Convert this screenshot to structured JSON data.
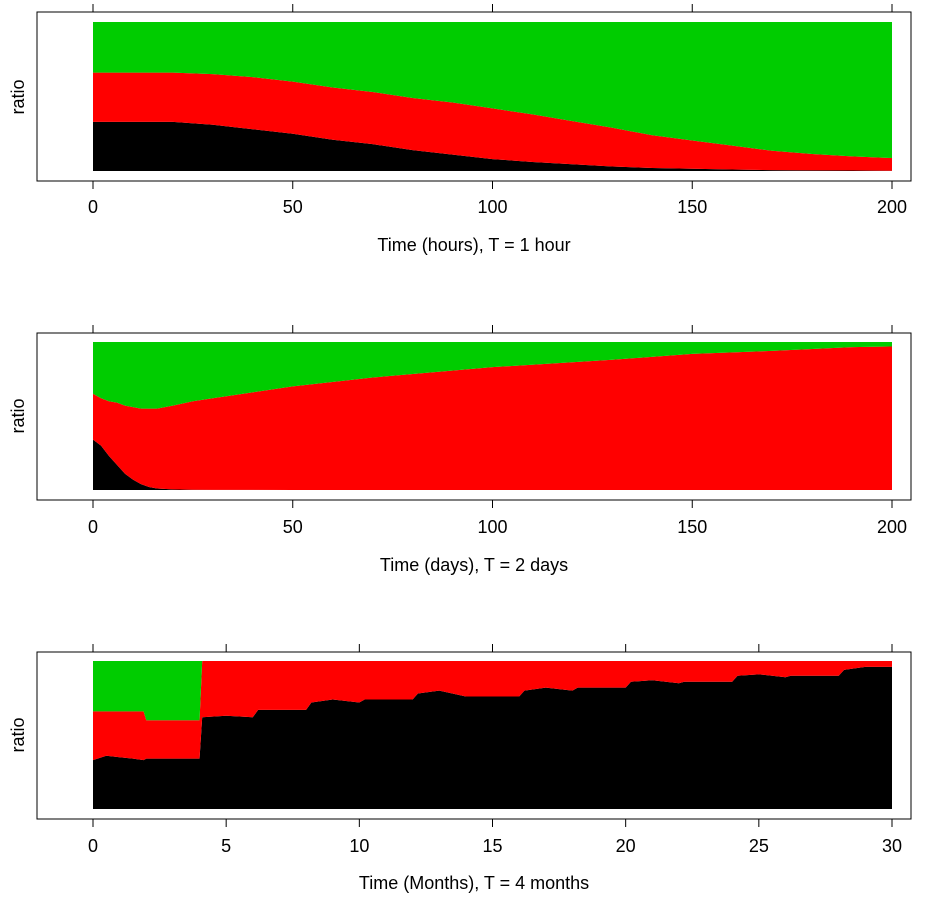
{
  "colors": {
    "top": "#00cc00",
    "middle": "#ff0000",
    "bottom": "#000000"
  },
  "chart_data": [
    {
      "type": "area",
      "stacked": true,
      "normalized": true,
      "xlabel": "Time (hours), T = 1 hour",
      "ylabel": "ratio",
      "xlim": [
        0,
        200
      ],
      "ylim": [
        0,
        1
      ],
      "xticks": [
        0,
        50,
        100,
        150,
        200
      ],
      "grid": false,
      "series": [
        {
          "color": "#000000",
          "x": [
            0,
            10,
            20,
            30,
            40,
            50,
            60,
            70,
            80,
            90,
            100,
            110,
            120,
            130,
            140,
            150,
            160,
            170,
            180,
            190,
            200
          ],
          "y": [
            0.33,
            0.33,
            0.33,
            0.31,
            0.28,
            0.25,
            0.21,
            0.18,
            0.14,
            0.11,
            0.08,
            0.06,
            0.045,
            0.03,
            0.02,
            0.015,
            0.01,
            0.006,
            0.004,
            0.003,
            0.002
          ]
        },
        {
          "color": "#ff0000",
          "x": [
            0,
            10,
            20,
            30,
            40,
            50,
            60,
            70,
            80,
            90,
            100,
            110,
            120,
            130,
            140,
            150,
            160,
            170,
            180,
            190,
            200
          ],
          "y": [
            0.33,
            0.33,
            0.33,
            0.34,
            0.35,
            0.35,
            0.35,
            0.35,
            0.35,
            0.35,
            0.34,
            0.32,
            0.29,
            0.26,
            0.22,
            0.19,
            0.16,
            0.13,
            0.11,
            0.095,
            0.085
          ]
        },
        {
          "color": "#00cc00",
          "x": [
            0,
            10,
            20,
            30,
            40,
            50,
            60,
            70,
            80,
            90,
            100,
            110,
            120,
            130,
            140,
            150,
            160,
            170,
            180,
            190,
            200
          ],
          "y": [
            0.34,
            0.34,
            0.34,
            0.35,
            0.37,
            0.4,
            0.44,
            0.47,
            0.51,
            0.54,
            0.58,
            0.62,
            0.665,
            0.71,
            0.76,
            0.795,
            0.83,
            0.864,
            0.886,
            0.902,
            0.913
          ]
        }
      ]
    },
    {
      "type": "area",
      "stacked": true,
      "normalized": true,
      "xlabel": "Time (days), T = 2 days",
      "ylabel": "ratio",
      "xlim": [
        0,
        200
      ],
      "ylim": [
        0,
        1
      ],
      "xticks": [
        0,
        50,
        100,
        150,
        200
      ],
      "grid": false,
      "series": [
        {
          "color": "#000000",
          "x": [
            0,
            2,
            4,
            6,
            8,
            10,
            12,
            14,
            16,
            20,
            25,
            30,
            50,
            100,
            150,
            200
          ],
          "y": [
            0.34,
            0.3,
            0.23,
            0.17,
            0.11,
            0.07,
            0.04,
            0.02,
            0.01,
            0.004,
            0.002,
            0.001,
            0,
            0,
            0,
            0
          ]
        },
        {
          "color": "#ff0000",
          "x": [
            0,
            2,
            4,
            6,
            8,
            10,
            12,
            14,
            16,
            20,
            25,
            30,
            50,
            70,
            100,
            130,
            150,
            170,
            190,
            200
          ],
          "y": [
            0.31,
            0.32,
            0.37,
            0.42,
            0.46,
            0.49,
            0.51,
            0.53,
            0.54,
            0.566,
            0.598,
            0.619,
            0.7,
            0.76,
            0.83,
            0.88,
            0.92,
            0.94,
            0.965,
            0.97
          ]
        },
        {
          "color": "#00cc00",
          "x": [
            0,
            2,
            4,
            6,
            8,
            10,
            12,
            14,
            16,
            20,
            25,
            30,
            50,
            70,
            100,
            130,
            150,
            170,
            190,
            200
          ],
          "y": [
            0.35,
            0.38,
            0.4,
            0.41,
            0.43,
            0.44,
            0.45,
            0.45,
            0.45,
            0.43,
            0.4,
            0.38,
            0.3,
            0.24,
            0.17,
            0.12,
            0.08,
            0.06,
            0.035,
            0.03
          ]
        }
      ]
    },
    {
      "type": "area",
      "stacked": true,
      "normalized": true,
      "xlabel": "Time (Months), T = 4 months",
      "ylabel": "ratio",
      "xlim": [
        0,
        30
      ],
      "ylim": [
        0,
        1
      ],
      "xticks": [
        0,
        5,
        10,
        15,
        20,
        25,
        30
      ],
      "grid": false,
      "series": [
        {
          "color": "#000000",
          "x": [
            0,
            0.5,
            1,
            1.5,
            1.9,
            2.0,
            4.0,
            4.1,
            5,
            6,
            6.2,
            8,
            8.2,
            9,
            10,
            10.2,
            12,
            12.2,
            13,
            14,
            14.2,
            16,
            16.2,
            17,
            18,
            18.2,
            20,
            20.2,
            21,
            22,
            22.2,
            24,
            24.2,
            25,
            26,
            26.2,
            28,
            28.2,
            29,
            30
          ],
          "y": [
            0.33,
            0.36,
            0.35,
            0.34,
            0.33,
            0.34,
            0.34,
            0.62,
            0.63,
            0.62,
            0.67,
            0.67,
            0.72,
            0.74,
            0.72,
            0.74,
            0.74,
            0.78,
            0.8,
            0.76,
            0.76,
            0.76,
            0.8,
            0.82,
            0.8,
            0.82,
            0.82,
            0.86,
            0.87,
            0.85,
            0.86,
            0.86,
            0.9,
            0.91,
            0.89,
            0.9,
            0.9,
            0.94,
            0.96,
            0.96
          ]
        },
        {
          "color": "#ff0000",
          "x": [
            0,
            0.5,
            1,
            1.5,
            1.9,
            2.0,
            4.0,
            4.1,
            5,
            6,
            6.2,
            8,
            8.2,
            9,
            10,
            10.2,
            12,
            12.2,
            13,
            14,
            14.2,
            16,
            16.2,
            17,
            18,
            18.2,
            20,
            20.2,
            21,
            22,
            22.2,
            24,
            24.2,
            25,
            26,
            26.2,
            28,
            28.2,
            29,
            30
          ],
          "y": [
            0.33,
            0.3,
            0.31,
            0.32,
            0.33,
            0.26,
            0.26,
            0.38,
            0.37,
            0.38,
            0.33,
            0.33,
            0.28,
            0.26,
            0.28,
            0.26,
            0.26,
            0.22,
            0.2,
            0.24,
            0.24,
            0.24,
            0.2,
            0.18,
            0.2,
            0.18,
            0.18,
            0.14,
            0.13,
            0.15,
            0.14,
            0.14,
            0.1,
            0.09,
            0.11,
            0.1,
            0.1,
            0.06,
            0.04,
            0.04
          ]
        },
        {
          "color": "#00cc00",
          "x": [
            0,
            0.5,
            1,
            1.5,
            1.9,
            2.0,
            4.0,
            4.1,
            30
          ],
          "y": [
            0.34,
            0.34,
            0.34,
            0.34,
            0.34,
            0.4,
            0.4,
            0,
            0
          ]
        }
      ]
    }
  ]
}
